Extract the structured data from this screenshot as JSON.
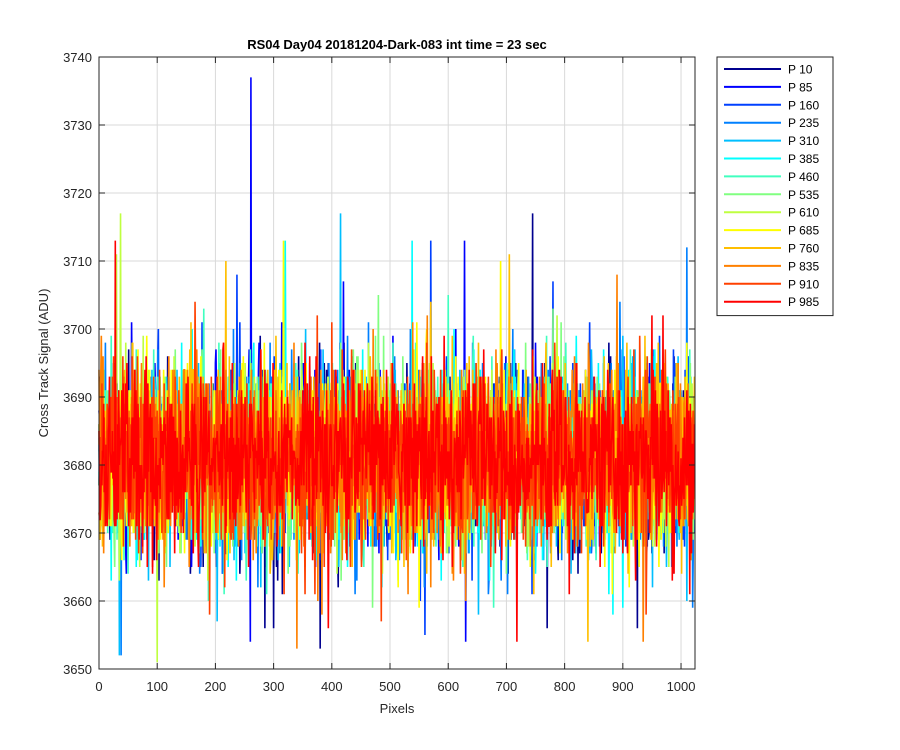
{
  "chart_data": {
    "type": "line",
    "title": "RS04 Day04 20181204-Dark-083 int time = 23 sec",
    "xlabel": "Pixels",
    "ylabel": "Cross Track Signal (ADU)",
    "xlim": [
      0,
      1024
    ],
    "ylim": [
      3650,
      3740
    ],
    "xticks": [
      0,
      100,
      200,
      300,
      400,
      500,
      600,
      700,
      800,
      900,
      1000
    ],
    "yticks": [
      3650,
      3660,
      3670,
      3680,
      3690,
      3700,
      3710,
      3720,
      3730,
      3740
    ],
    "grid": true,
    "legend_position": "outside-top-right",
    "n_points_per_series": 1024,
    "noise_model": "dark frame noise around ~3681 ADU with occasional spikes (e.g. ~3737 near pixel 260 in P 85, ~3717 near pixel 415 and 745)",
    "series": [
      {
        "name": "P 10",
        "color": "#00008F",
        "mean": 3681,
        "spikes": [
          [
            745,
            3717
          ],
          [
            285,
            3656
          ],
          [
            300,
            3656
          ],
          [
            380,
            3653
          ],
          [
            770,
            3656
          ],
          [
            925,
            3656
          ]
        ]
      },
      {
        "name": "P 85",
        "color": "#0000FF",
        "mean": 3681,
        "spikes": [
          [
            261,
            3737
          ],
          [
            260,
            3654
          ],
          [
            420,
            3707
          ],
          [
            628,
            3713
          ],
          [
            630,
            3654
          ]
        ]
      },
      {
        "name": "P 160",
        "color": "#0040FF",
        "mean": 3681,
        "spikes": [
          [
            237,
            3708
          ],
          [
            242,
            3701
          ],
          [
            570,
            3713
          ],
          [
            560,
            3655
          ]
        ]
      },
      {
        "name": "P 235",
        "color": "#0080FF",
        "mean": 3681,
        "spikes": [
          [
            1010,
            3712
          ],
          [
            1020,
            3659
          ],
          [
            38,
            3652
          ]
        ]
      },
      {
        "name": "P 310",
        "color": "#00BFFF",
        "mean": 3681,
        "spikes": [
          [
            415,
            3717
          ],
          [
            355,
            3700
          ],
          [
            35,
            3652
          ]
        ]
      },
      {
        "name": "P 385",
        "color": "#00FFFF",
        "mean": 3681,
        "spikes": [
          [
            538,
            3713
          ],
          [
            320,
            3713
          ],
          [
            900,
            3659
          ]
        ]
      },
      {
        "name": "P 460",
        "color": "#40FFBF",
        "mean": 3681,
        "spikes": [
          [
            180,
            3703
          ],
          [
            600,
            3705
          ],
          [
            50,
            3664
          ]
        ]
      },
      {
        "name": "P 535",
        "color": "#80FF80",
        "mean": 3681,
        "spikes": [
          [
            480,
            3705
          ],
          [
            780,
            3703
          ],
          [
            470,
            3659
          ]
        ]
      },
      {
        "name": "P 610",
        "color": "#BFFF40",
        "mean": 3681,
        "spikes": [
          [
            37,
            3717
          ],
          [
            30,
            3711
          ],
          [
            100,
            3651
          ]
        ]
      },
      {
        "name": "P 685",
        "color": "#FFFF00",
        "mean": 3681,
        "spikes": [
          [
            317,
            3713
          ],
          [
            690,
            3710
          ],
          [
            550,
            3659
          ]
        ]
      },
      {
        "name": "P 760",
        "color": "#FFBF00",
        "mean": 3681,
        "spikes": [
          [
            218,
            3710
          ],
          [
            705,
            3711
          ],
          [
            840,
            3654
          ]
        ]
      },
      {
        "name": "P 835",
        "color": "#FF8000",
        "mean": 3681,
        "spikes": [
          [
            890,
            3708
          ],
          [
            340,
            3653
          ],
          [
            935,
            3654
          ]
        ]
      },
      {
        "name": "P 910",
        "color": "#FF4000",
        "mean": 3681,
        "spikes": [
          [
            165,
            3704
          ],
          [
            485,
            3657
          ],
          [
            400,
            3701
          ]
        ]
      },
      {
        "name": "P 985",
        "color": "#FF0000",
        "mean": 3681,
        "spikes": [
          [
            28,
            3713
          ],
          [
            718,
            3654
          ],
          [
            950,
            3702
          ]
        ]
      }
    ]
  }
}
